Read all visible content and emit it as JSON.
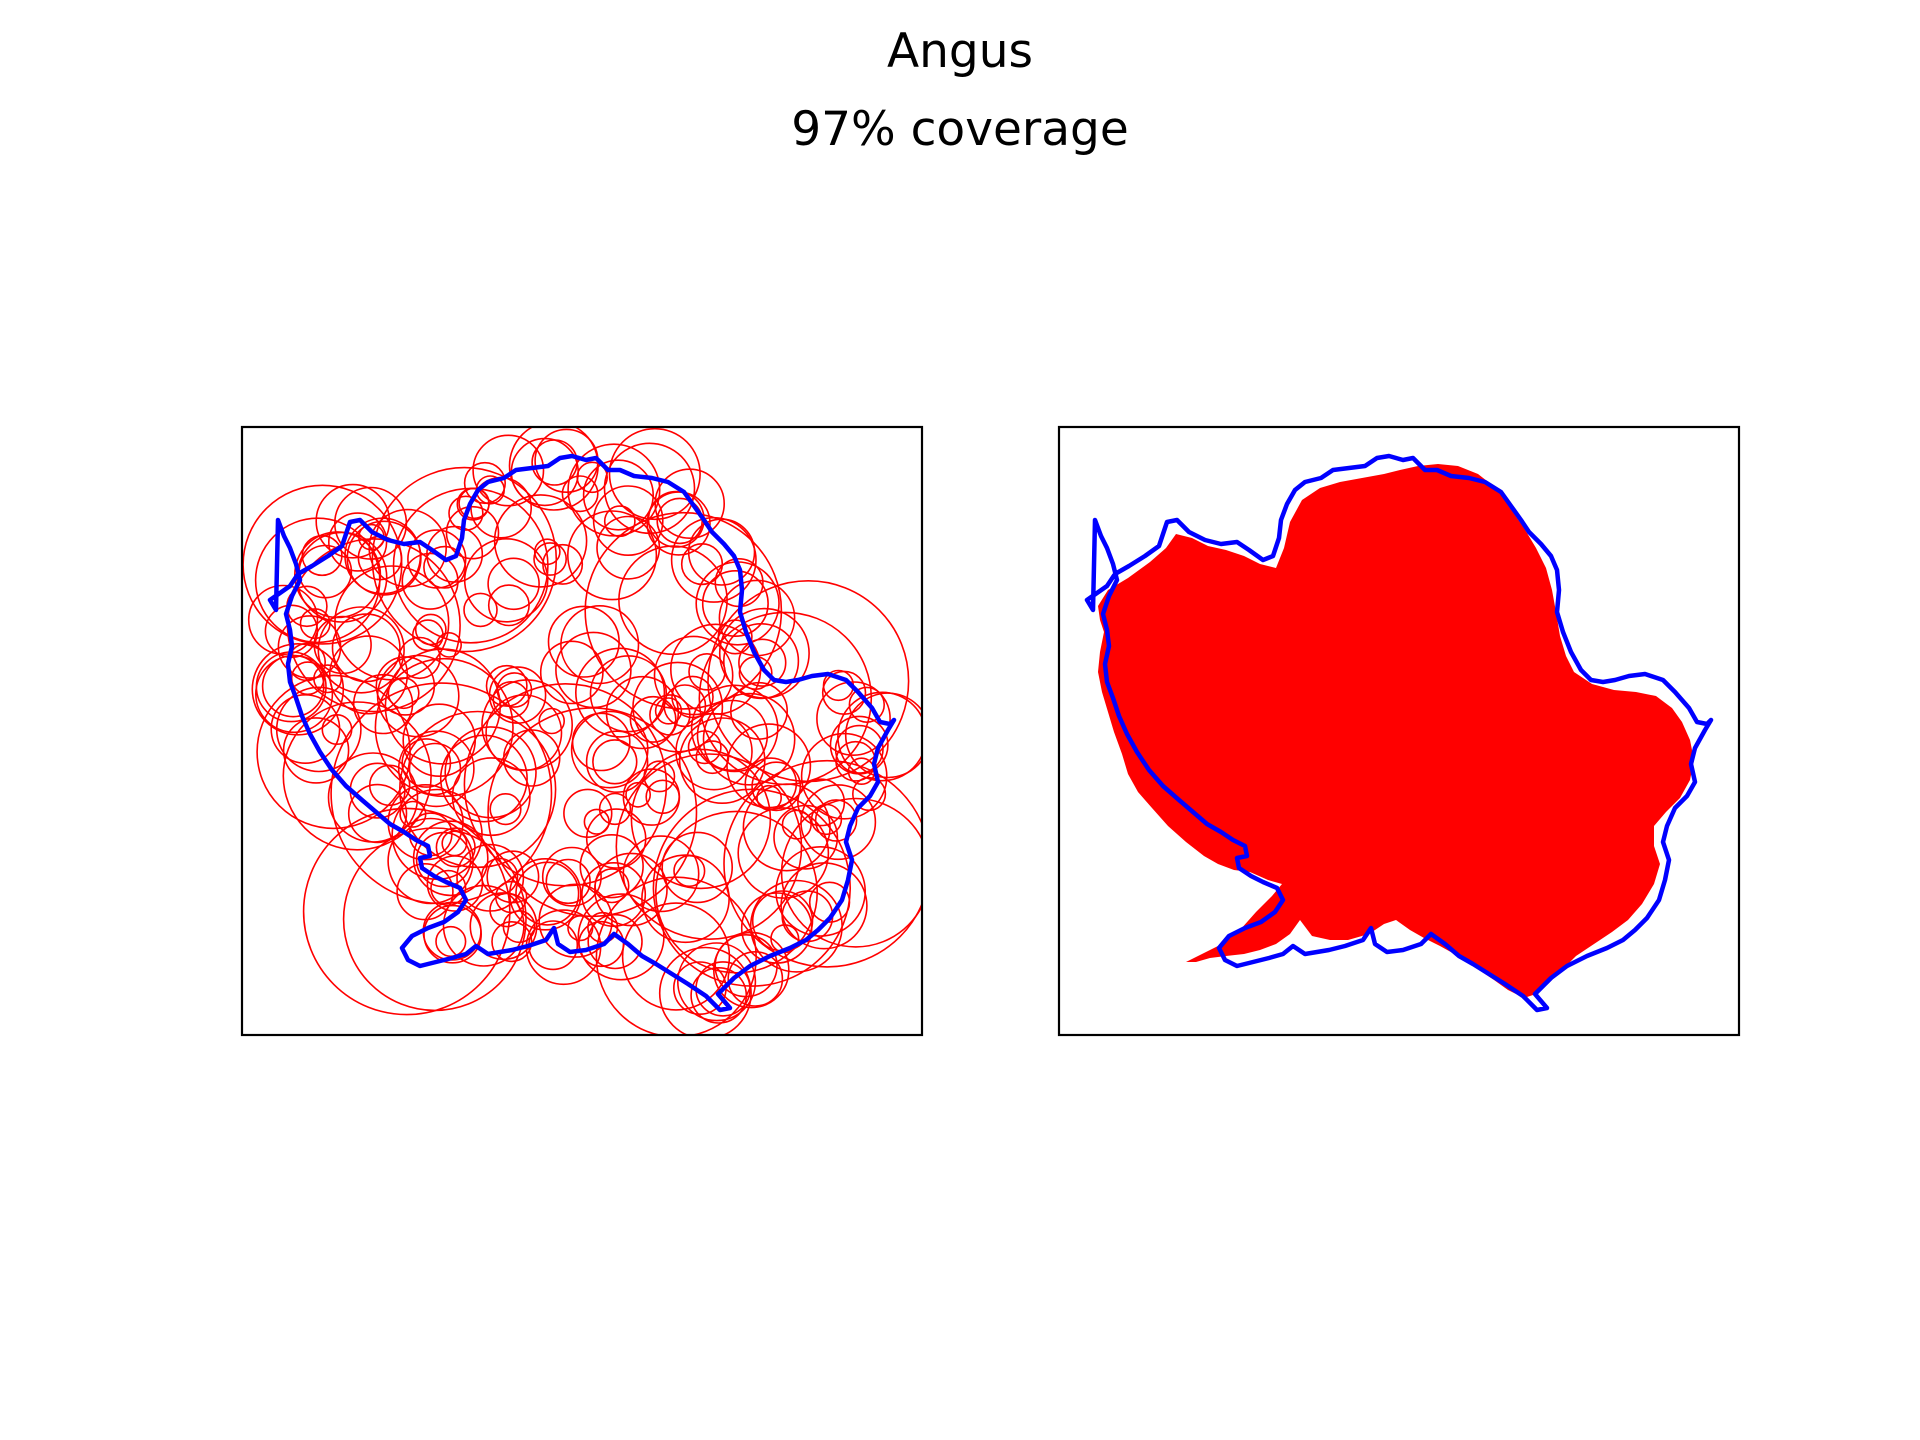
{
  "figure": {
    "title": "Angus",
    "subtitle": "97% coverage"
  },
  "panels": [
    {
      "content": "circles"
    },
    {
      "content": "union"
    }
  ],
  "colors": {
    "boundary": "#0000ff",
    "coverage": "#ff0000",
    "frame": "#000000",
    "background": "#ffffff"
  }
}
